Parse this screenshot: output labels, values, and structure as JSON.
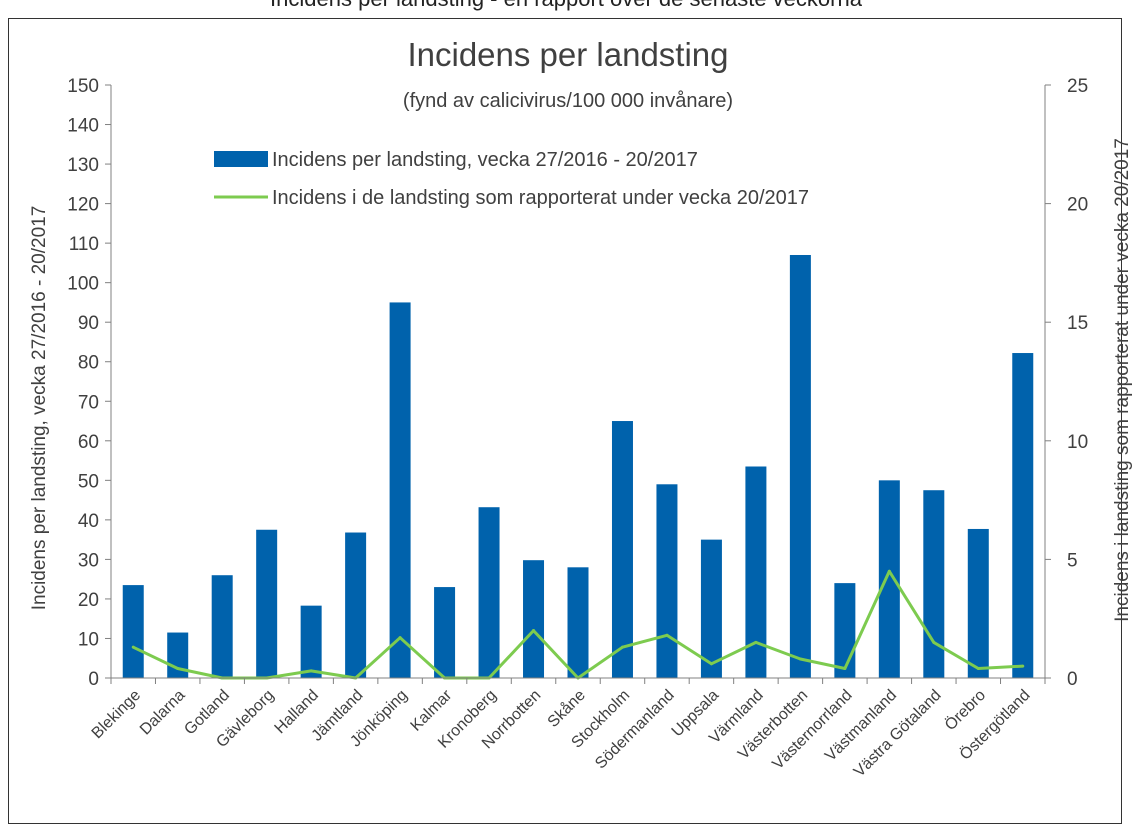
{
  "header_text": "Incidens per landsting - en rapport över de senaste veckorna",
  "chart_data": {
    "type": "bar",
    "title": "Incidens per landsting",
    "subtitle": "(fynd av calicivirus/100 000 invånare)",
    "ylabel": "Incidens per landsting, vecka 27/2016 - 20/2017",
    "y2label": "Incidens i landsting som rapporterat under vecka 20/2017",
    "ylim": [
      0,
      150
    ],
    "y2lim": [
      0,
      25
    ],
    "yticks": [
      0,
      10,
      20,
      30,
      40,
      50,
      60,
      70,
      80,
      90,
      100,
      110,
      120,
      130,
      140,
      150
    ],
    "y2ticks": [
      0,
      5,
      10,
      15,
      20,
      25
    ],
    "legend_placement": "top-center",
    "categories": [
      "Blekinge",
      "Dalarna",
      "Gotland",
      "Gävleborg",
      "Halland",
      "Jämtland",
      "Jönköping",
      "Kalmar",
      "Kronoberg",
      "Norrbotten",
      "Skåne",
      "Stockholm",
      "Södermanland",
      "Uppsala",
      "Värmland",
      "Västerbotten",
      "Västernorrland",
      "Västmanland",
      "Västra Götaland",
      "Örebro",
      "Östergötland"
    ],
    "series": [
      {
        "name": "Incidens per landsting, vecka 27/2016 - 20/2017",
        "type": "bar",
        "axis": "left",
        "color": "#0062AC",
        "values": [
          23.5,
          11.5,
          26,
          37.5,
          18.3,
          36.8,
          95,
          23,
          43.2,
          29.8,
          28,
          65,
          49,
          35,
          53.5,
          107,
          24,
          50,
          47.5,
          37.7,
          82.2
        ]
      },
      {
        "name": "Incidens i de landsting som rapporterat under vecka 20/2017",
        "type": "line",
        "axis": "right",
        "color": "#7DCB4F",
        "values": [
          1.3,
          0.4,
          0.0,
          0.0,
          0.3,
          0.0,
          1.7,
          0.0,
          0.0,
          2.0,
          0.0,
          1.3,
          1.8,
          0.6,
          1.5,
          0.8,
          0.4,
          4.5,
          1.5,
          0.4,
          0.5
        ]
      }
    ]
  }
}
